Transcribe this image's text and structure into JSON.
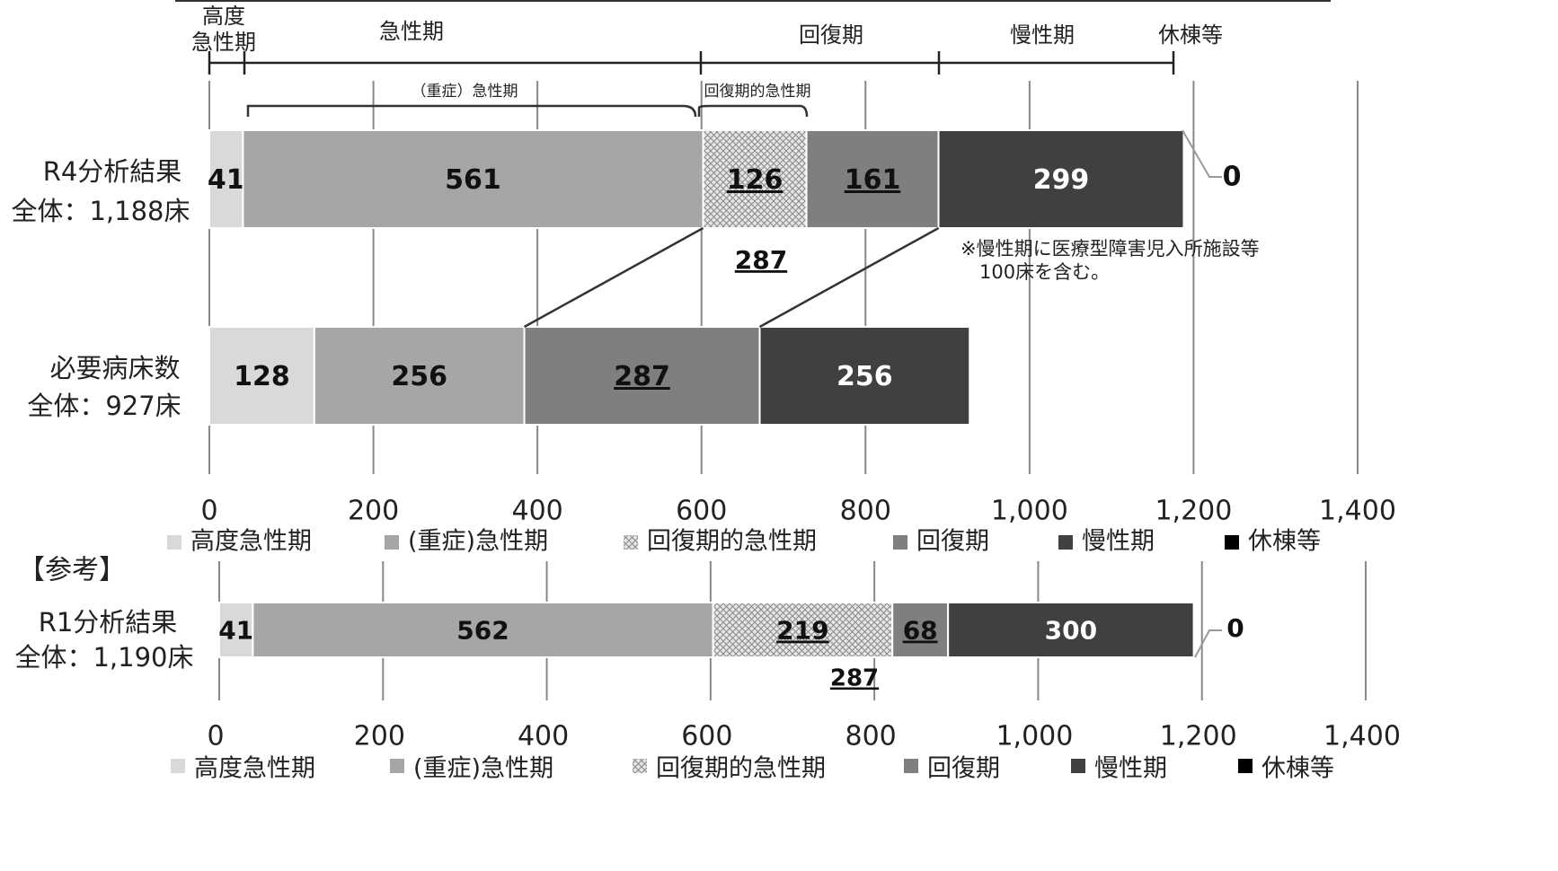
{
  "chart_data": [
    {
      "type": "bar",
      "orientation": "horizontal",
      "stacked": true,
      "xlim": [
        0,
        1400
      ],
      "x_ticks": [
        "0",
        "200",
        "400",
        "600",
        "800",
        "1,000",
        "1,200",
        "1,400"
      ],
      "grid": true,
      "legend": "bottom",
      "rows": [
        {
          "label": "R4分析結果",
          "total_label": "全体：1,188床",
          "values": [
            41,
            561,
            126,
            161,
            299,
            0
          ],
          "labels": [
            "41",
            "561",
            "126",
            "161",
            "299",
            "0"
          ]
        },
        {
          "label": "必要病床数",
          "total_label": "全体：927床",
          "values": [
            128,
            256,
            0,
            287,
            256,
            0
          ],
          "labels": [
            "128",
            "256",
            "",
            "287",
            "256",
            ""
          ]
        }
      ],
      "series": [
        {
          "name": "高度急性期",
          "color": "#d9d9d9"
        },
        {
          "name": "(重症)急性期",
          "color": "#a6a6a6"
        },
        {
          "name": "回復期的急性期",
          "color": "#c8c8c8",
          "pattern": "crosshatch"
        },
        {
          "name": "回復期",
          "color": "#7f7f7f"
        },
        {
          "name": "慢性期",
          "color": "#404040"
        },
        {
          "name": "休棟等",
          "color": "#000000"
        }
      ],
      "annotations": {
        "phase_headers": [
          "高度\n急性期",
          "急性期",
          "回復期",
          "慢性期",
          "休棟等"
        ],
        "brace_severe": "（重症）急性期",
        "brace_recovery": "回復期的急性期",
        "sum_label": "287",
        "footnote": "※慢性期に医療型障害児入所施設等\n　100床を含む。"
      }
    },
    {
      "type": "bar",
      "orientation": "horizontal",
      "stacked": true,
      "section_title": "【参考】",
      "xlim": [
        0,
        1400
      ],
      "x_ticks": [
        "0",
        "200",
        "400",
        "600",
        "800",
        "1,000",
        "1,200",
        "1,400"
      ],
      "grid": true,
      "legend": "bottom",
      "rows": [
        {
          "label": "R1分析結果",
          "total_label": "全体：1,190床",
          "values": [
            41,
            562,
            219,
            68,
            300,
            0
          ],
          "labels": [
            "41",
            "562",
            "219",
            "68",
            "300",
            "0"
          ]
        }
      ],
      "sum_label": "287",
      "series": [
        {
          "name": "高度急性期",
          "color": "#d9d9d9"
        },
        {
          "name": "(重症)急性期",
          "color": "#a6a6a6"
        },
        {
          "name": "回復期的急性期",
          "color": "#c8c8c8",
          "pattern": "crosshatch"
        },
        {
          "name": "回復期",
          "color": "#7f7f7f"
        },
        {
          "name": "慢性期",
          "color": "#404040"
        },
        {
          "name": "休棟等",
          "color": "#000000"
        }
      ]
    }
  ]
}
